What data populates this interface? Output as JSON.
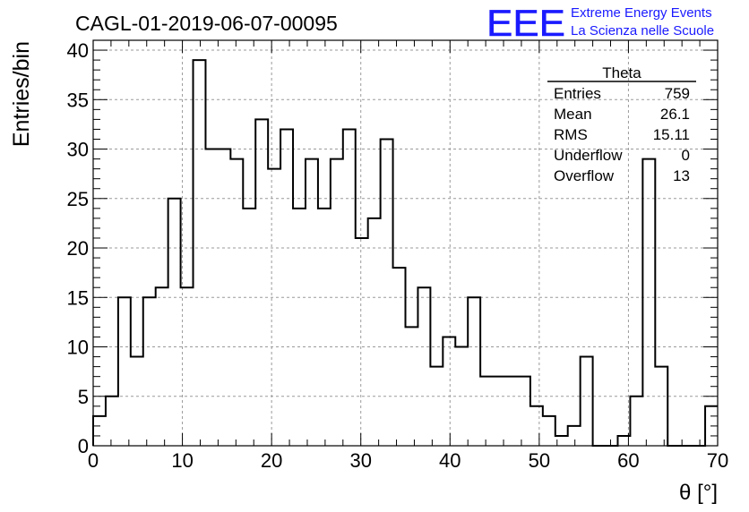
{
  "chart_data": {
    "type": "bar",
    "title": "CAGL-01-2019-06-07-00095",
    "xlabel": "θ [°]",
    "ylabel": "Entries/bin",
    "xlim": [
      0,
      70
    ],
    "ylim": [
      0,
      41
    ],
    "grid": true,
    "bin_width": 1.4,
    "xticks": [
      0,
      10,
      20,
      30,
      40,
      50,
      60,
      70
    ],
    "yticks": [
      0,
      5,
      10,
      15,
      20,
      25,
      30,
      35,
      40
    ],
    "values": [
      3,
      5,
      15,
      9,
      15,
      16,
      25,
      16,
      39,
      30,
      30,
      29,
      24,
      33,
      28,
      32,
      24,
      29,
      24,
      29,
      32,
      21,
      23,
      31,
      18,
      12,
      16,
      8,
      11,
      10,
      15,
      7,
      7,
      7,
      7,
      4,
      3,
      1,
      2,
      9,
      0,
      0,
      1,
      5,
      29,
      8,
      0,
      0,
      0,
      4
    ],
    "stats": {
      "title": "Theta",
      "rows": [
        {
          "label": "Entries",
          "value": "759"
        },
        {
          "label": "Mean",
          "value": "26.1"
        },
        {
          "label": "RMS",
          "value": "15.11"
        },
        {
          "label": "Underflow",
          "value": "0"
        },
        {
          "label": "Overflow",
          "value": "13"
        }
      ]
    }
  },
  "logo": {
    "text": "EEE",
    "line1": "Extreme Energy Events",
    "line2": "La Scienza nelle Scuole",
    "color": "#1a1aff"
  }
}
